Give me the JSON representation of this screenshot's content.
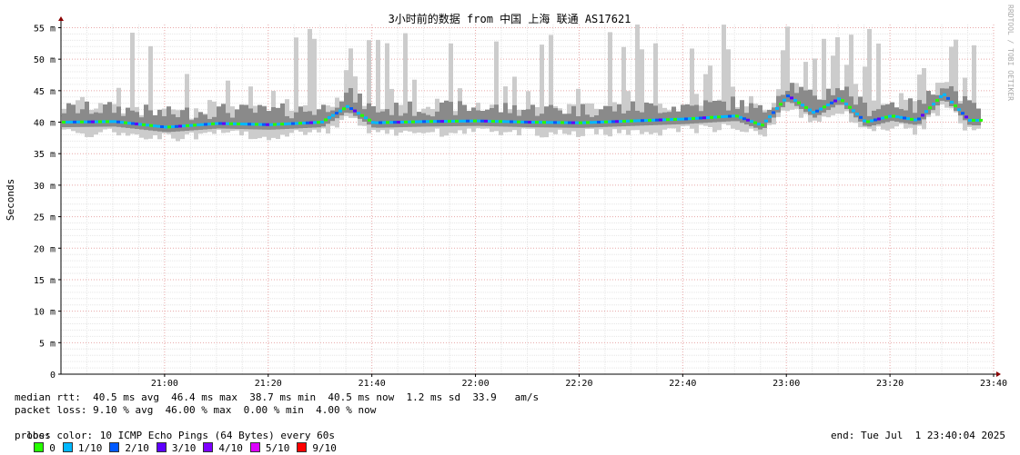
{
  "chart_data": {
    "type": "area",
    "title": "3小时前的数据 from 中国 上海 联通 AS17621",
    "ylabel": "Seconds",
    "xlabel": "",
    "watermark": "RRDTOOL / TOBI OETIKER",
    "ylim": [
      0,
      55.5
    ],
    "y_unit": "ms",
    "y_ticks": [
      {
        "v": 0,
        "label": "0"
      },
      {
        "v": 5,
        "label": "5 m"
      },
      {
        "v": 10,
        "label": "10 m"
      },
      {
        "v": 15,
        "label": "15 m"
      },
      {
        "v": 20,
        "label": "20 m"
      },
      {
        "v": 25,
        "label": "25 m"
      },
      {
        "v": 30,
        "label": "30 m"
      },
      {
        "v": 35,
        "label": "35 m"
      },
      {
        "v": 40,
        "label": "40 m"
      },
      {
        "v": 45,
        "label": "45 m"
      },
      {
        "v": 50,
        "label": "50 m"
      },
      {
        "v": 55,
        "label": "55 m"
      }
    ],
    "x_range": [
      "20:40",
      "23:40"
    ],
    "x_ticks": [
      "21:00",
      "21:20",
      "21:40",
      "22:00",
      "22:20",
      "22:40",
      "23:00",
      "23:20",
      "23:40"
    ],
    "grid": true,
    "median_series": {
      "name": "median rtt",
      "x": [
        "20:40",
        "20:50",
        "21:00",
        "21:10",
        "21:20",
        "21:30",
        "21:35",
        "21:40",
        "21:50",
        "22:00",
        "22:10",
        "22:20",
        "22:30",
        "22:40",
        "22:50",
        "22:55",
        "23:00",
        "23:05",
        "23:10",
        "23:15",
        "23:20",
        "23:25",
        "23:30",
        "23:35"
      ],
      "y": [
        40.0,
        40.1,
        39.2,
        39.8,
        39.6,
        40.0,
        42.5,
        39.9,
        40.1,
        40.2,
        40.0,
        39.9,
        40.2,
        40.5,
        41.0,
        39.5,
        44.2,
        41.5,
        43.8,
        40.0,
        41.0,
        40.3,
        44.5,
        40.3
      ]
    },
    "loss_colors": [
      {
        "label": "0",
        "color": "#26ff00"
      },
      {
        "label": "1/10",
        "color": "#00b8ff"
      },
      {
        "label": "2/10",
        "color": "#0059ff"
      },
      {
        "label": "3/10",
        "color": "#5e00ff"
      },
      {
        "label": "4/10",
        "color": "#7e00ff"
      },
      {
        "label": "5/10",
        "color": "#dd00ff"
      },
      {
        "label": "9/10",
        "color": "#ff0000"
      }
    ],
    "smoke_color": "#b0b0b0"
  },
  "legend": {
    "median_rtt": "median rtt:  40.5 ms avg  46.4 ms max  38.7 ms min  40.5 ms now  1.2 ms sd  33.9   am/s",
    "packet_loss": "packet loss: 9.10 % avg  46.00 % max  0.00 % min  4.00 % now",
    "loss_color_label": "loss color:",
    "probe_label": "probe:",
    "probe": "10 ICMP Echo Pings (64 Bytes) every 60s",
    "end": "end: Tue Jul  1 23:40:04 2025"
  }
}
